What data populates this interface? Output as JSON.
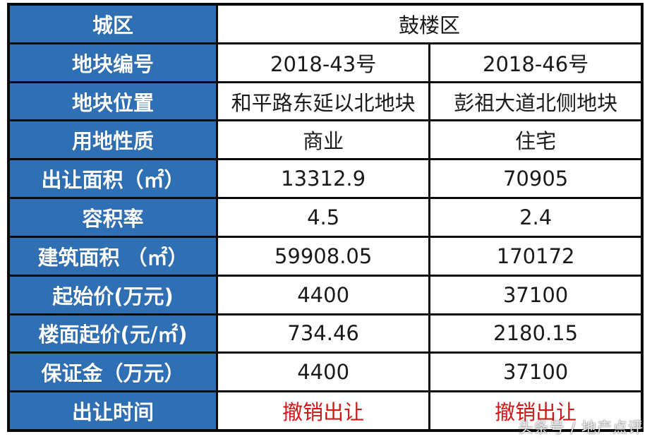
{
  "table": {
    "district": {
      "label": "城区",
      "value": "鼓楼区"
    },
    "rows": [
      {
        "label": "地块编号",
        "a": "2018-43号",
        "b": "2018-46号"
      },
      {
        "label": "地块位置",
        "a": "和平路东延以北地块",
        "b": "彭祖大道北侧地块"
      },
      {
        "label": "用地性质",
        "a": "商业",
        "b": "住宅"
      },
      {
        "label": "出让面积（㎡）",
        "a": "13312.9",
        "b": "70905"
      },
      {
        "label": "容积率",
        "a": "4.5",
        "b": "2.4"
      },
      {
        "label": "建筑面积 （㎡）",
        "a": "59908.05",
        "b": "170172"
      },
      {
        "label": "起始价(万元)",
        "a": "4400",
        "b": "37100"
      },
      {
        "label": "楼面起价(元/㎡)",
        "a": "734.46",
        "b": "2180.15"
      },
      {
        "label": "保证金（万元）",
        "a": "4400",
        "b": "37100"
      },
      {
        "label": "出让时间",
        "a": "撤销出让",
        "b": "撤销出让"
      }
    ]
  },
  "colors": {
    "label_bg": "#2f6fb4",
    "label_text": "#ffffff",
    "border": "#0a0a0a",
    "cancel_text": "#d01818"
  },
  "watermark": "头条号 / 地产点评"
}
